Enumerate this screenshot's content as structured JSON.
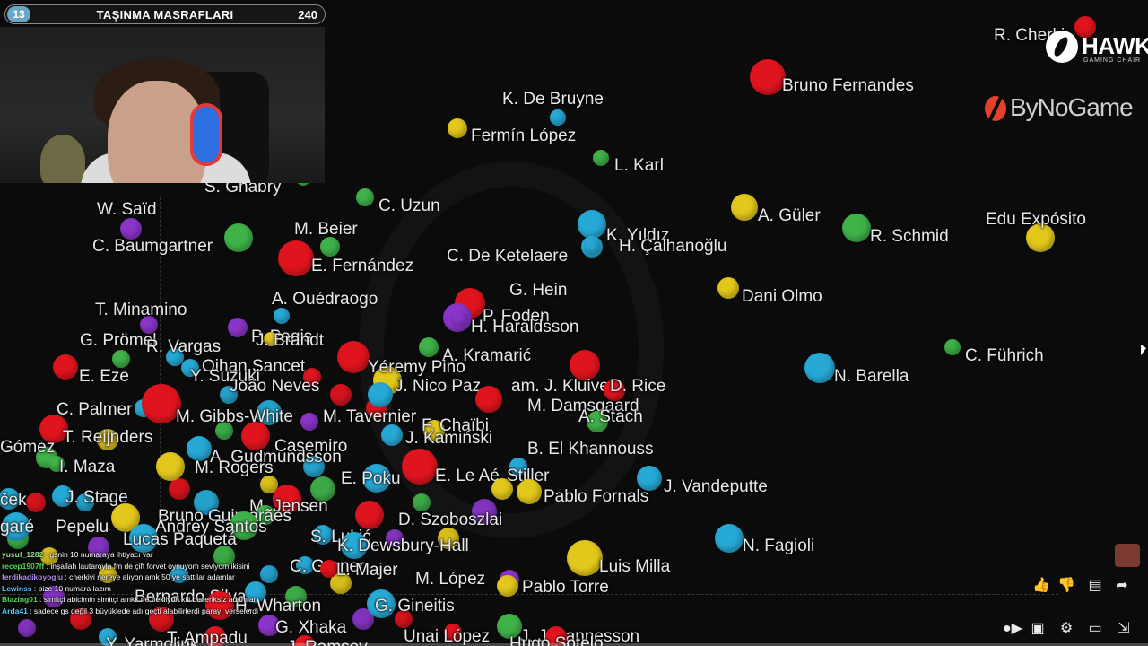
{
  "overlay": {
    "badge_number": "13",
    "title": "TAŞINMA MASRAFLARI",
    "amount": "240"
  },
  "sponsors": {
    "hawk_name": "HAWK",
    "hawk_sub": "GAMING CHAIR",
    "bynogame": "ByNoGame"
  },
  "chart_data": {
    "type": "scatter",
    "points": [
      {
        "label": "R. Cherki",
        "color": "#e0141e"
      },
      {
        "label": "Bruno Fernandes",
        "color": "#e0141e"
      },
      {
        "label": "K. De Bruyne",
        "color": "#27a9d6"
      },
      {
        "label": "Fermín López",
        "color": "#e3c81c"
      },
      {
        "label": "L. Karl",
        "color": "#3fb24a"
      },
      {
        "label": "S. Gnabry",
        "color": "#3fb24a"
      },
      {
        "label": "C. Uzun",
        "color": "#3fb24a"
      },
      {
        "label": "A. Güler",
        "color": "#e3c81c"
      },
      {
        "label": "R. Schmid",
        "color": "#3fb24a"
      },
      {
        "label": "Edu Expósito",
        "color": "#e3c81c"
      },
      {
        "label": "W. Saïd",
        "color": "#8a35c9"
      },
      {
        "label": "M. Beier",
        "color": "#3fb24a"
      },
      {
        "label": "K. Yıldız",
        "color": "#27a9d6"
      },
      {
        "label": "H. Çalhanoğlu",
        "color": "#27a9d6"
      },
      {
        "label": "C. Baumgartner",
        "color": "#3fb24a"
      },
      {
        "label": "E. Fernández",
        "color": "#e0141e"
      },
      {
        "label": "C. De Ketelaere",
        "color": "#27a9d6"
      },
      {
        "label": "Dani Olmo",
        "color": "#e3c81c"
      },
      {
        "label": "A. Ouédraogo",
        "color": "#27a9d6"
      },
      {
        "label": "G. Hein",
        "color": "#e0141e"
      },
      {
        "label": "T. Minamino",
        "color": "#8a35c9"
      },
      {
        "label": "P. Foden",
        "color": "#8a35c9"
      },
      {
        "label": "H. Haraldsson",
        "color": "#8a35c9"
      },
      {
        "label": "G. Prömel",
        "color": "#3fb24a"
      },
      {
        "label": "R. Vargas",
        "color": "#27a9d6"
      },
      {
        "label": "P. Pagis",
        "color": "#8a35c9"
      },
      {
        "label": "J. Brandt",
        "color": "#e3c81c"
      },
      {
        "label": "C. Führich",
        "color": "#3fb24a"
      },
      {
        "label": "A. Kramarić",
        "color": "#3fb24a"
      },
      {
        "label": "Oihan Sancet",
        "color": "#e0141e"
      },
      {
        "label": "Y. Suzuki",
        "color": "#27a9d6"
      },
      {
        "label": "E. Eze",
        "color": "#e0141e"
      },
      {
        "label": "Yéremy Pino",
        "color": "#e3c81c"
      },
      {
        "label": "N. Barella",
        "color": "#27a9d6"
      },
      {
        "label": "João Neves",
        "color": "#e0141e"
      },
      {
        "label": "J. Nico Paz",
        "color": "#27a9d6"
      },
      {
        "label": "am. J. Kluivert",
        "color": "#e0141e"
      },
      {
        "label": "D. Rice",
        "color": "#e0141e"
      },
      {
        "label": "C. Palmer",
        "color": "#27a9d6"
      },
      {
        "label": "M. Damsgaard",
        "color": "#e0141e"
      },
      {
        "label": "M. Gibbs-White",
        "color": "#e0141e"
      },
      {
        "label": "M. Tavernier",
        "color": "#8a35c9"
      },
      {
        "label": "A. Stach",
        "color": "#3fb24a"
      },
      {
        "label": "F. Chaïbi",
        "color": "#e3c81c"
      },
      {
        "label": "J. Kamiński",
        "color": "#27a9d6"
      },
      {
        "label": "T. Reijnders",
        "color": "#e0141e"
      },
      {
        "label": "Gómez",
        "color": "#3fb24a"
      },
      {
        "label": "Casemiro",
        "color": "#e0141e"
      },
      {
        "label": "B. El Khannouss",
        "color": "#27a9d6"
      },
      {
        "label": "A. Gudmundsson",
        "color": "#27a9d6"
      },
      {
        "label": "I. Maza",
        "color": "#3fb24a"
      },
      {
        "label": "M. Rogers",
        "color": "#e3c81c"
      },
      {
        "label": "E. Poku",
        "color": "#27a9d6"
      },
      {
        "label": "E. Le Aé",
        "color": "#e0141e"
      },
      {
        "label": "Stiller",
        "color": "#e3c81c"
      },
      {
        "label": "J. Vandeputte",
        "color": "#27a9d6"
      },
      {
        "label": "Pablo Fornals",
        "color": "#e3c81c"
      },
      {
        "label": "J. Stage",
        "color": "#27a9d6"
      },
      {
        "label": "M. Jensen",
        "color": "#e0141e"
      },
      {
        "label": "ček",
        "color": "#27a9d6"
      },
      {
        "label": "Bruno Guimarães",
        "color": "#3fb24a"
      },
      {
        "label": "Andrey Santos",
        "color": "#3fb24a"
      },
      {
        "label": "D. Szoboszlai",
        "color": "#e0141e"
      },
      {
        "label": "garé",
        "color": "#27a9d6"
      },
      {
        "label": "Pepelu",
        "color": "#e3c81c"
      },
      {
        "label": "S. Lukić",
        "color": "#27a9d6"
      },
      {
        "label": "Lucas Paquetá",
        "color": "#27a9d6"
      },
      {
        "label": "K. Dewsbury-Hall",
        "color": "#27a9d6"
      },
      {
        "label": "N. Fagioli",
        "color": "#27a9d6"
      },
      {
        "label": "Luis Milla",
        "color": "#e3c81c"
      },
      {
        "label": "C. Garner",
        "color": "#27a9d6"
      },
      {
        "label": "L. Majer",
        "color": "#e0141e"
      },
      {
        "label": "M. López",
        "color": "#8a35c9"
      },
      {
        "label": "Pablo Torre",
        "color": "#e3c81c"
      },
      {
        "label": "Bernardo Silva",
        "color": "#27a9d6"
      },
      {
        "label": "G. Gineitis",
        "color": "#27a9d6"
      },
      {
        "label": "H. Wharton",
        "color": "#e0141e"
      },
      {
        "label": "G. Xhaka",
        "color": "#8a35c9"
      },
      {
        "label": "Unai López",
        "color": "#e0141e"
      },
      {
        "label": "J. Jóhannesson",
        "color": "#3fb24a"
      },
      {
        "label": "Hugo Sotelo",
        "color": "#e0141e"
      },
      {
        "label": "Y. Yarmoliuk",
        "color": "#27a9d6"
      },
      {
        "label": "T. Ampadu",
        "color": "#e0141e"
      },
      {
        "label": "J. Ramsey",
        "color": "#e0141e"
      }
    ],
    "extra_colors": [
      "#e0141e",
      "#27a9d6",
      "#3fb24a",
      "#e3c81c",
      "#8a35c9"
    ]
  },
  "chat": [
    {
      "user": "yusuf_1282",
      "text": "gsnin 10 numaraya ihtiyacı var",
      "color": "#8ae08a"
    },
    {
      "user": "recep1907ff",
      "text": "inşallah lautaroyla fm de çift forvet oynuyom seviyom ikisini",
      "color": "#52d852"
    },
    {
      "user": "ferdikadikoyoglu",
      "text": "cherkiyi nereye alıyon amk 50 ye sattılar adamlar",
      "color": "#b08be8"
    },
    {
      "user": "Lewinss",
      "text": "bize 10 numara lazım",
      "color": "#56c8ff"
    },
    {
      "user": "Blazing01",
      "text": "simitçi abicimin simitçi amkk ne bekliyon kiii beceriksiz adamlar",
      "color": "#52d852"
    },
    {
      "user": "Arda41",
      "text": "sadece gs değil 3 büyüklede adı geçti alabilirlerdi parayı verselerdi",
      "color": "#56c8ff"
    }
  ],
  "controls": {
    "like_icon": "thumbs-up-icon",
    "dislike_icon": "thumbs-down-icon",
    "comment_icon": "comment-icon",
    "share_icon": "share-icon",
    "autoplay_icon": "autoplay-toggle-icon",
    "subtitles_icon": "subtitles-icon",
    "settings_icon": "settings-icon",
    "cast_icon": "cast-icon",
    "fullscreen_icon": "exit-fullscreen-icon"
  }
}
